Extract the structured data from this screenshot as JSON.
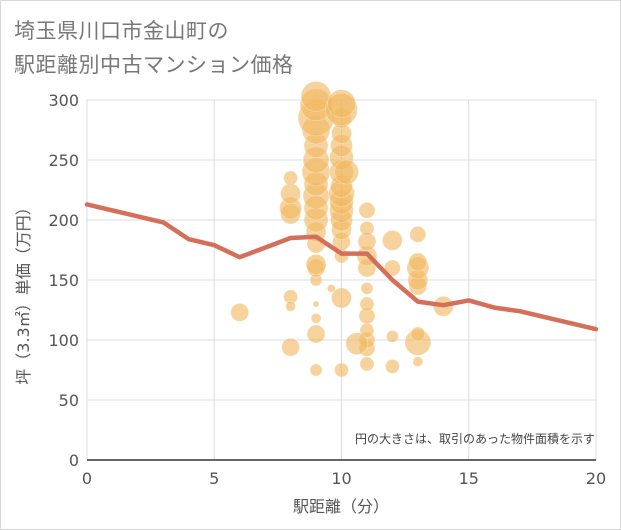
{
  "title_line1": "埼玉県川口市金山町の",
  "title_line2": "駅距離別中古マンション価格",
  "chart_data": {
    "type": "scatter",
    "xlabel": "駅距離（分）",
    "ylabel": "坪（3.3㎡）単価（万円）",
    "xlim": [
      0,
      20
    ],
    "ylim": [
      0,
      300
    ],
    "x_ticks": [
      "0",
      "5",
      "10",
      "15",
      "20"
    ],
    "y_ticks": [
      "0",
      "50",
      "100",
      "150",
      "200",
      "250",
      "300"
    ],
    "grid": true,
    "note": "円の大きさは、取引のあった物件面積を示す",
    "colors": {
      "bubble": "#f0b860",
      "line": "#d4705a",
      "grid": "#d8dde3"
    },
    "scatter_points": [
      [
        6,
        123,
        9
      ],
      [
        8,
        94,
        9
      ],
      [
        8,
        136,
        7
      ],
      [
        8,
        128,
        5
      ],
      [
        8,
        205,
        10
      ],
      [
        8,
        210,
        11
      ],
      [
        8,
        222,
        10
      ],
      [
        8,
        235,
        7
      ],
      [
        9,
        75,
        6
      ],
      [
        9,
        105,
        9
      ],
      [
        9,
        118,
        5
      ],
      [
        9,
        130,
        3
      ],
      [
        9,
        150,
        6
      ],
      [
        9,
        160,
        9
      ],
      [
        9,
        163,
        10
      ],
      [
        9,
        180,
        9
      ],
      [
        9,
        190,
        10
      ],
      [
        9,
        200,
        12
      ],
      [
        9,
        210,
        12
      ],
      [
        9,
        220,
        13
      ],
      [
        9,
        230,
        12
      ],
      [
        9,
        240,
        14
      ],
      [
        9,
        250,
        13
      ],
      [
        9,
        262,
        12
      ],
      [
        9,
        275,
        14
      ],
      [
        9,
        285,
        18
      ],
      [
        9,
        296,
        16
      ],
      [
        9,
        303,
        15
      ],
      [
        10,
        75,
        7
      ],
      [
        10,
        135,
        10
      ],
      [
        10,
        170,
        7
      ],
      [
        10,
        182,
        9
      ],
      [
        10,
        192,
        10
      ],
      [
        10,
        200,
        11
      ],
      [
        10,
        208,
        12
      ],
      [
        10,
        215,
        12
      ],
      [
        10,
        222,
        13
      ],
      [
        10,
        228,
        11
      ],
      [
        10,
        240,
        12
      ],
      [
        10,
        252,
        12
      ],
      [
        10,
        262,
        11
      ],
      [
        10,
        272,
        10
      ],
      [
        10,
        285,
        10
      ],
      [
        10,
        292,
        16
      ],
      [
        10,
        297,
        14
      ],
      [
        10.2,
        240,
        12
      ],
      [
        11,
        80,
        7
      ],
      [
        11,
        93,
        8
      ],
      [
        11,
        100,
        8
      ],
      [
        11,
        108,
        7
      ],
      [
        11,
        120,
        8
      ],
      [
        11,
        130,
        7
      ],
      [
        11,
        143,
        6
      ],
      [
        11,
        160,
        9
      ],
      [
        11,
        170,
        10
      ],
      [
        11,
        182,
        9
      ],
      [
        11,
        193,
        7
      ],
      [
        11,
        208,
        8
      ],
      [
        12,
        78,
        7
      ],
      [
        12,
        103,
        6
      ],
      [
        12,
        160,
        8
      ],
      [
        12,
        183,
        10
      ],
      [
        13,
        82,
        5
      ],
      [
        13,
        98,
        13
      ],
      [
        13,
        105,
        7
      ],
      [
        13,
        145,
        9
      ],
      [
        13,
        150,
        10
      ],
      [
        13,
        160,
        11
      ],
      [
        13,
        165,
        9
      ],
      [
        13,
        188,
        8
      ],
      [
        14,
        128,
        10
      ],
      [
        10.6,
        97,
        11
      ],
      [
        9.6,
        143,
        4
      ]
    ],
    "series": [
      {
        "x": [
          0,
          1,
          2,
          3,
          4,
          5,
          6,
          7,
          8,
          9,
          10,
          11,
          12,
          13,
          14,
          15,
          16,
          17,
          18,
          19,
          20
        ],
        "values": [
          213,
          208,
          203,
          198,
          184,
          179,
          169,
          177,
          185,
          186,
          172,
          172,
          150,
          132,
          129,
          133,
          127,
          124,
          119,
          114,
          109
        ]
      }
    ]
  }
}
